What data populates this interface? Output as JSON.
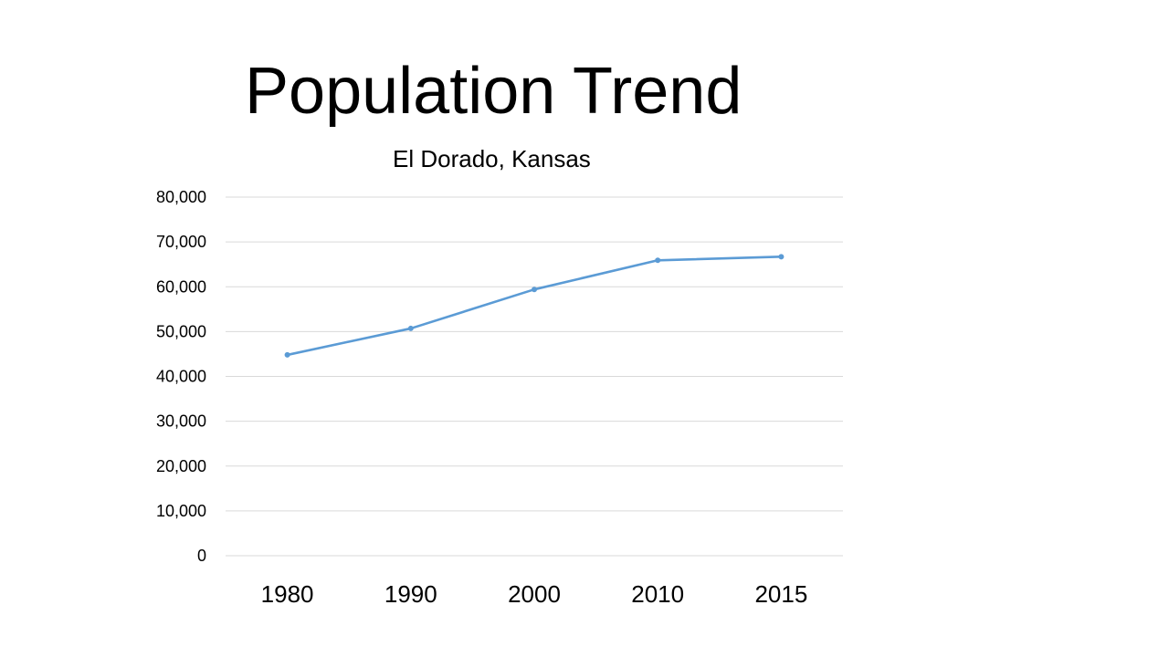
{
  "chart_data": {
    "type": "line",
    "title": "Population Trend",
    "subtitle": "El Dorado, Kansas",
    "xlabel": "",
    "ylabel": "",
    "categories": [
      "1980",
      "1990",
      "2000",
      "2010",
      "2015"
    ],
    "series": [
      {
        "values": [
          44800,
          50700,
          59400,
          65900,
          66700
        ],
        "color": "#5b9bd5"
      }
    ],
    "ylim": [
      0,
      80000
    ],
    "yticks": [
      0,
      10000,
      20000,
      30000,
      40000,
      50000,
      60000,
      70000,
      80000
    ],
    "ytick_labels": [
      "0",
      "10,000",
      "20,000",
      "30,000",
      "40,000",
      "50,000",
      "60,000",
      "70,000",
      "80,000"
    ],
    "grid": true,
    "gridline_color": "#d9d9d9",
    "legend": "none",
    "markers": true
  }
}
